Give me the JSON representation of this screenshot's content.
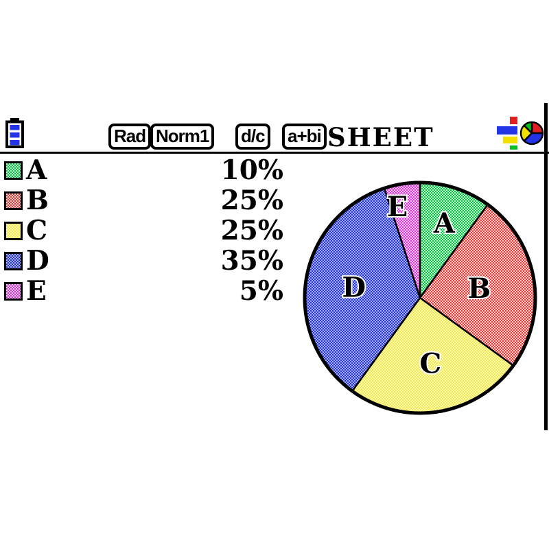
{
  "status_bar": {
    "battery_icon": "battery-icon",
    "badges": [
      "Rad",
      "Norm1",
      "d/c",
      "a+bi"
    ],
    "mode_label": "SHEET",
    "app_icon": "stats-graph-app-icon"
  },
  "chart_data": {
    "type": "pie",
    "title": "",
    "direction": "clockwise",
    "start_angle_deg": 0,
    "unit": "%",
    "categories": [
      "A",
      "B",
      "C",
      "D",
      "E"
    ],
    "values": [
      10,
      25,
      25,
      35,
      5
    ],
    "legend_position": "left",
    "outline_color": "#000000",
    "slices": [
      {
        "label": "A",
        "value": 10,
        "display": "10%",
        "base": "#00c744",
        "light": "#c9f5d0"
      },
      {
        "label": "B",
        "value": 25,
        "display": "25%",
        "base": "#ee3434",
        "light": "#fdd8d2"
      },
      {
        "label": "C",
        "value": 25,
        "display": "25%",
        "base": "#f1e862",
        "light": "#fdf9a2"
      },
      {
        "label": "D",
        "value": 35,
        "display": "35%",
        "base": "#2433da",
        "light": "#a9b1f1"
      },
      {
        "label": "E",
        "value": 5,
        "display": "5%",
        "base": "#e22ce2",
        "light": "#fbd3f8"
      }
    ]
  }
}
